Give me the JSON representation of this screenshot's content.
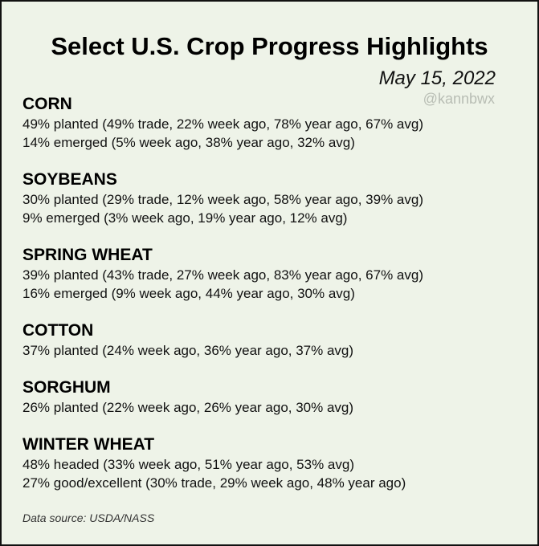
{
  "title": "Select U.S. Crop Progress Highlights",
  "date": "May 15, 2022",
  "handle": "@kannbwx",
  "sections": [
    {
      "heading": "CORN",
      "lines": [
        "49% planted (49% trade, 22% week ago, 78% year ago, 67% avg)",
        "14% emerged (5% week ago, 38% year ago, 32% avg)"
      ]
    },
    {
      "heading": "SOYBEANS",
      "lines": [
        "30% planted (29% trade, 12% week ago, 58% year ago, 39% avg)",
        "9% emerged (3% week ago, 19% year ago, 12% avg)"
      ]
    },
    {
      "heading": "SPRING WHEAT",
      "lines": [
        "39% planted (43% trade, 27% week ago, 83% year ago, 67% avg)",
        "16% emerged (9% week ago, 44% year ago, 30% avg)"
      ]
    },
    {
      "heading": "COTTON",
      "lines": [
        "37% planted (24% week ago, 36% year ago, 37% avg)"
      ]
    },
    {
      "heading": "SORGHUM",
      "lines": [
        "26% planted (22% week ago, 26% year ago, 30% avg)"
      ]
    },
    {
      "heading": "WINTER WHEAT",
      "lines": [
        "48% headed (33% week ago, 51% year ago, 53% avg)",
        "27% good/excellent (30% trade, 29% week ago, 48% year ago)"
      ]
    }
  ],
  "source": "Data source: USDA/NASS"
}
